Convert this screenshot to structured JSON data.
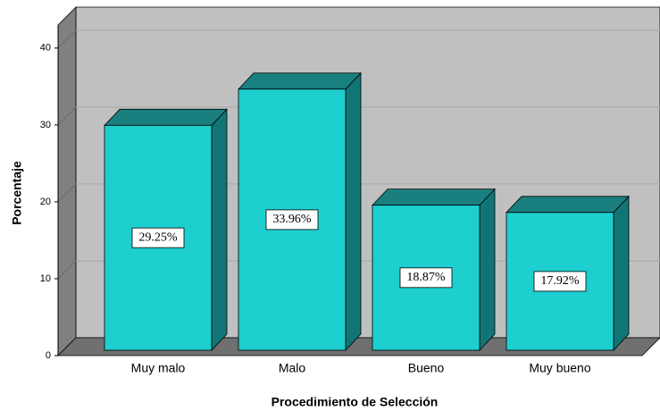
{
  "chart_data": {
    "type": "bar3d",
    "x_label": "Procedimiento de Selección",
    "y_label": "Porcentaje",
    "categories": [
      "Muy malo",
      "Malo",
      "Bueno",
      "Muy bueno"
    ],
    "values": [
      29.25,
      33.96,
      18.87,
      17.92
    ],
    "value_labels": [
      "29.25%",
      "33.96%",
      "18.87%",
      "17.92%"
    ],
    "color": "#1dcfcf",
    "ylim": [
      0,
      43
    ],
    "yticks": [
      0,
      10,
      20,
      30,
      40
    ],
    "grid": true
  }
}
